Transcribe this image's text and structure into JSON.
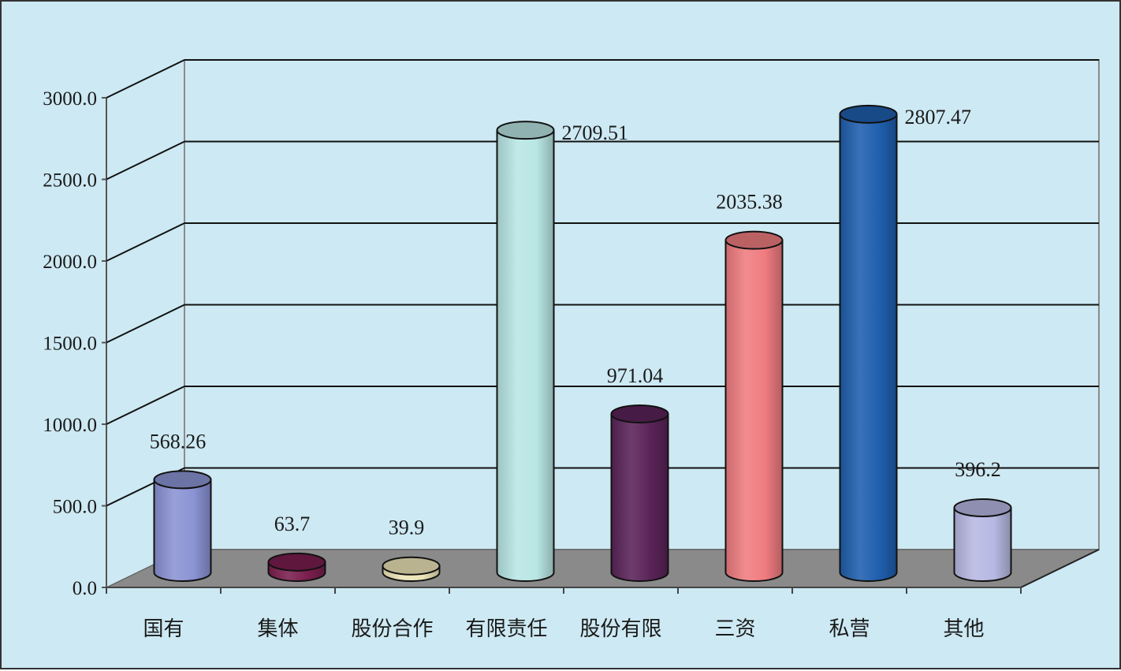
{
  "chart_data": {
    "type": "bar",
    "style": "3d-cylinder",
    "categories": [
      "国有",
      "集体",
      "股份合作",
      "有限责任",
      "股份有限",
      "三资",
      "私营",
      "其他"
    ],
    "values": [
      568.26,
      63.7,
      39.9,
      2709.51,
      971.04,
      2035.38,
      2807.47,
      396.2
    ],
    "value_labels": [
      "568.26",
      "63.7",
      "39.9",
      "2709.51",
      "971.04",
      "2035.38",
      "2807.47",
      "396.2"
    ],
    "yticks": [
      "0.0",
      "500.0",
      "1000.0",
      "1500.0",
      "2000.0",
      "2500.0",
      "3000.0"
    ],
    "ylim": [
      0,
      3000
    ],
    "grid": true,
    "colors": [
      "#8b93d4",
      "#7a1e4e",
      "#ede5b8",
      "#b8e6e4",
      "#5a2358",
      "#ef7c80",
      "#1f5fae",
      "#b7b9e3"
    ],
    "background": "#cde9f3",
    "floor_color": "#8a8a8a"
  }
}
